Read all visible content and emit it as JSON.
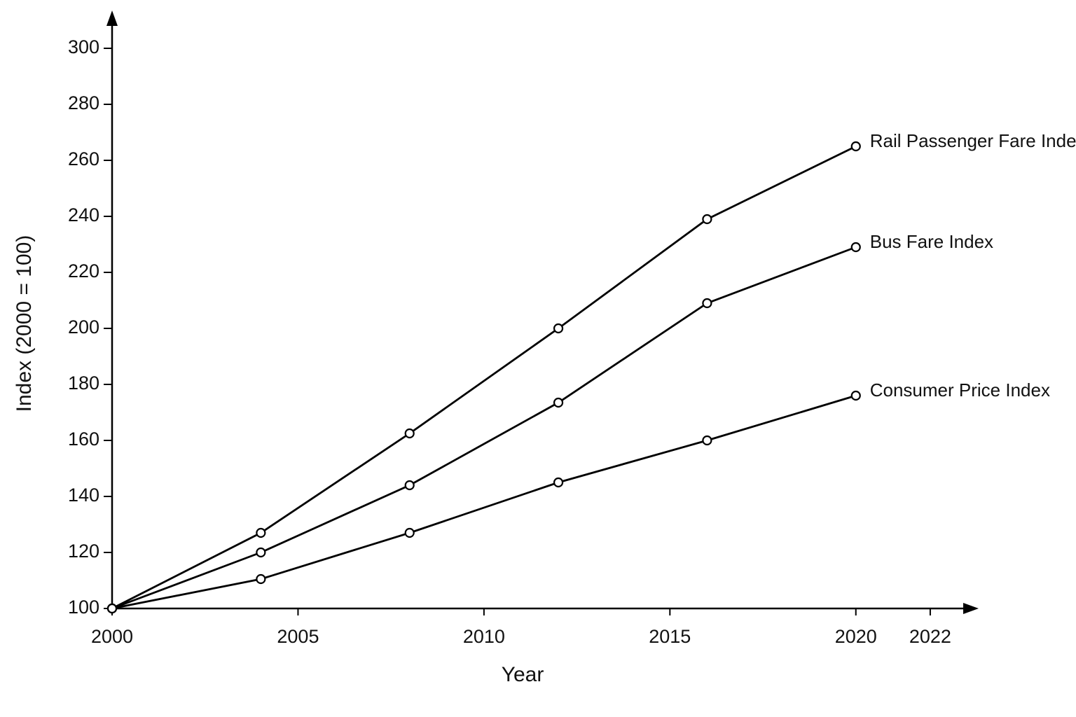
{
  "chart_data": {
    "type": "line",
    "x_label": "Year",
    "y_label": "Index (2000 = 100)",
    "x": [
      2000,
      2004,
      2008,
      2012,
      2016,
      2020
    ],
    "series": [
      {
        "name": "Rail Passenger Fare Index",
        "color": "#000000",
        "values": [
          100,
          127,
          162.5,
          200,
          239,
          265
        ]
      },
      {
        "name": "Bus Fare Index",
        "color": "#000000",
        "values": [
          100,
          120,
          144,
          173.5,
          209,
          229
        ]
      },
      {
        "name": "Consumer Price Index",
        "color": "#000000",
        "values": [
          100,
          110.5,
          127,
          145,
          160,
          176
        ]
      }
    ],
    "xlim": [
      2000,
      2023
    ],
    "xticks": [
      2000,
      2005,
      2010,
      2015,
      2020,
      2022
    ],
    "ylim": [
      100,
      310
    ],
    "yticks": [
      100,
      120,
      140,
      160,
      180,
      200,
      220,
      240,
      260,
      280,
      300
    ],
    "grid": false
  }
}
